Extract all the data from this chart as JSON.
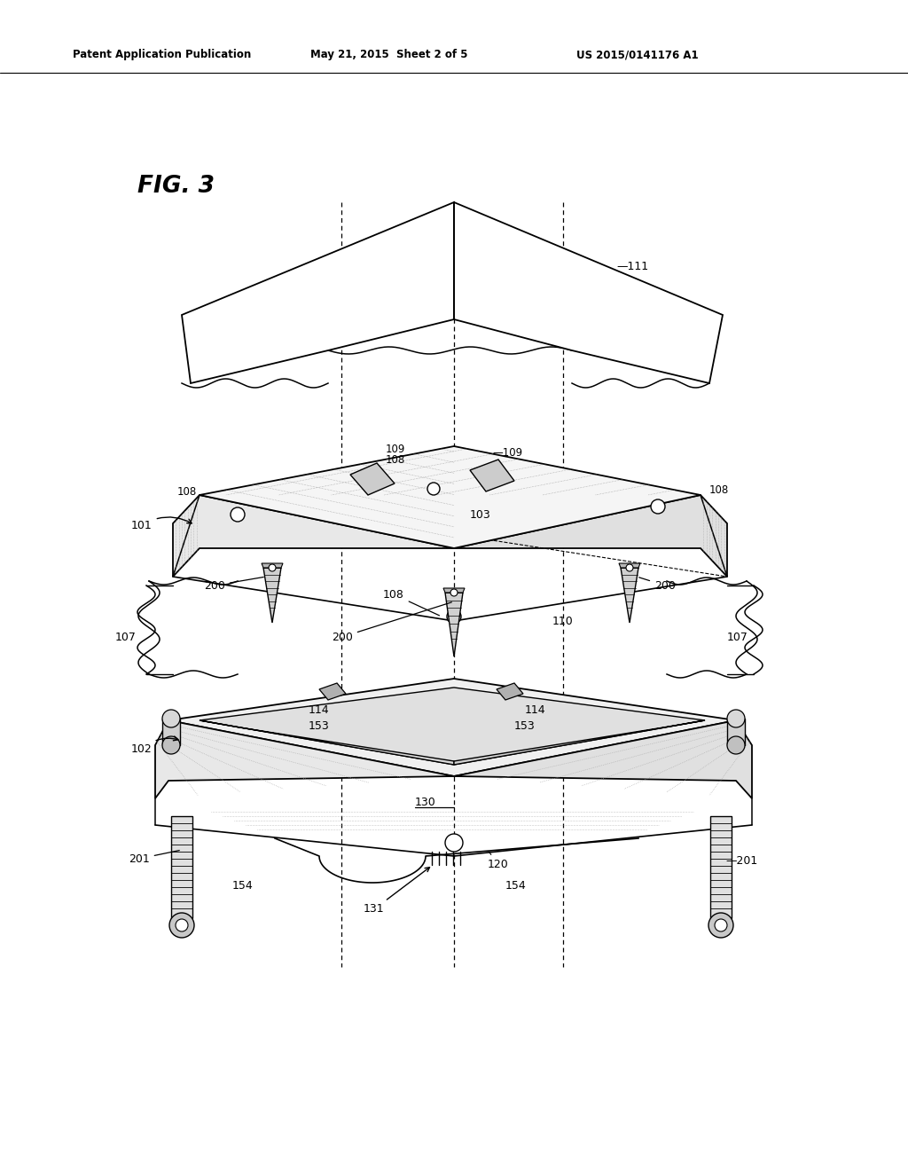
{
  "header_left": "Patent Application Publication",
  "header_mid": "May 21, 2015  Sheet 2 of 5",
  "header_right": "US 2015/0141176 A1",
  "fig_label": "FIG. 3",
  "background_color": "#ffffff",
  "line_color": "#000000",
  "text_color": "#000000"
}
